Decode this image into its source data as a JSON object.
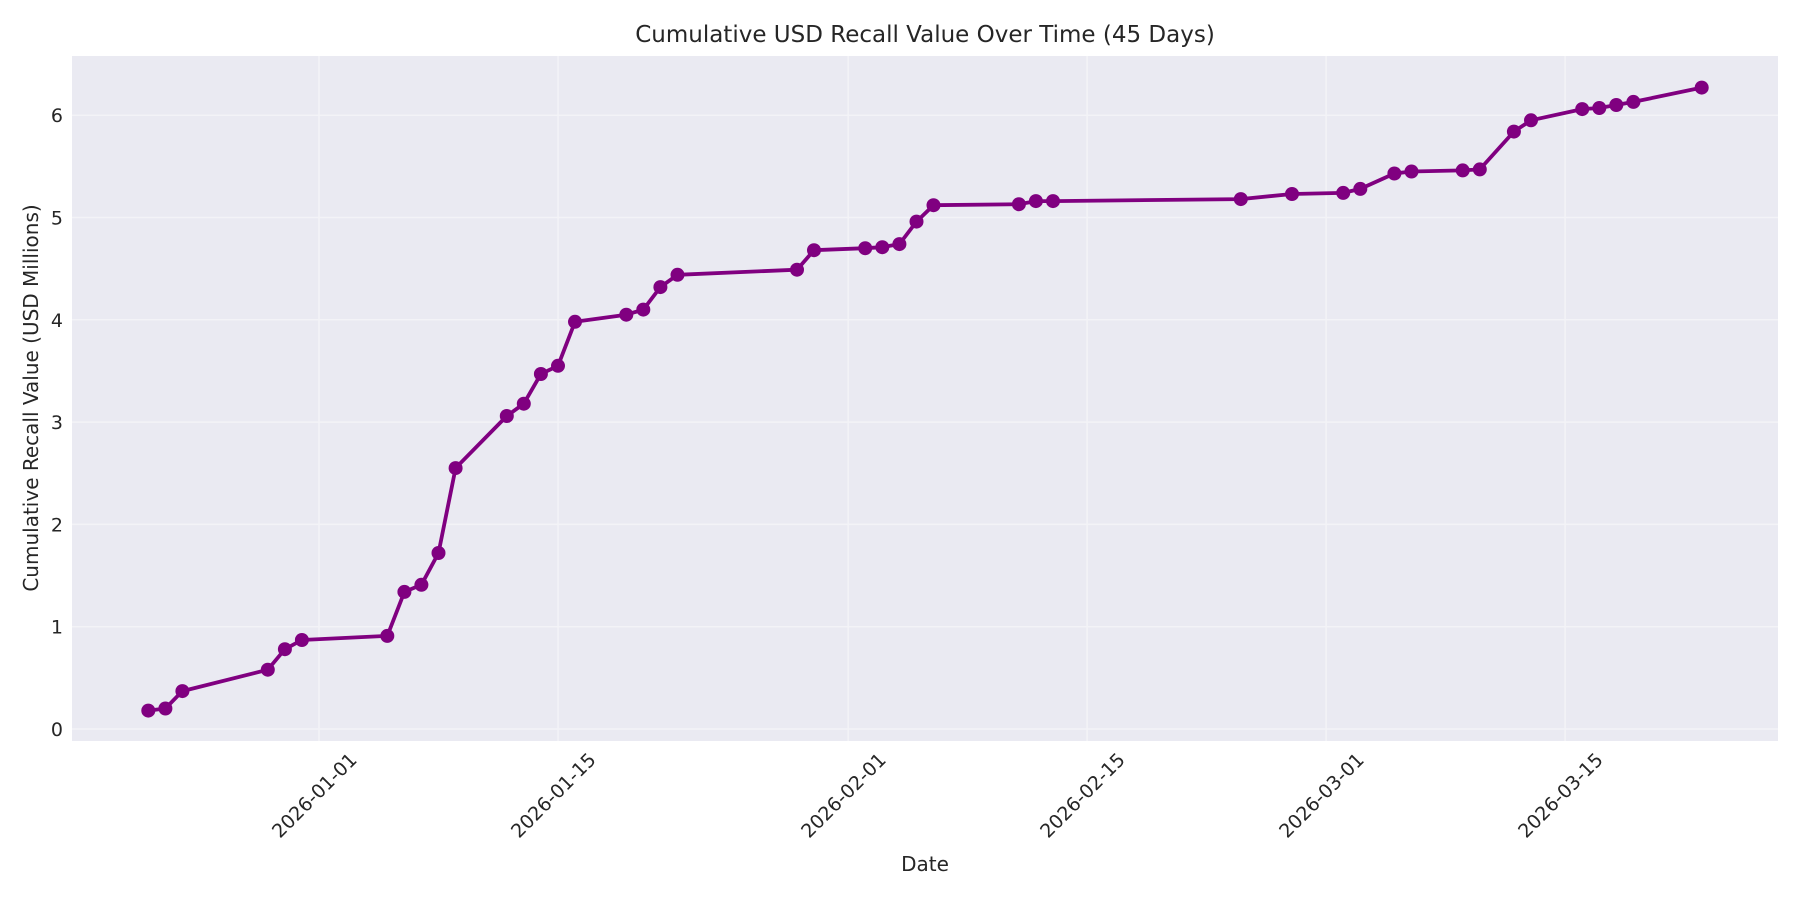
{
  "chart_data": {
    "type": "line",
    "title": "Cumulative USD Recall Value Over Time (45 Days)",
    "xlabel": "Date",
    "ylabel": "Cumulative Recall Value (USD Millions)",
    "x_ticks": [
      "2026-01-01",
      "2026-01-15",
      "2026-02-01",
      "2026-02-15",
      "2026-03-01",
      "2026-03-15"
    ],
    "y_ticks": [
      0,
      1,
      2,
      3,
      4,
      5,
      6
    ],
    "ylim": [
      -0.12,
      6.62
    ],
    "xlim": [
      "2025-12-18",
      "2026-03-28"
    ],
    "grid": true,
    "legend": null,
    "colors": {
      "line": "#800080",
      "marker": "#800080",
      "plot_background": "#EAEAF2",
      "grid": "#F3F3F7"
    },
    "series": [
      {
        "name": "Cumulative Recall Value",
        "marker": "circle",
        "points": [
          {
            "x": "2025-12-22",
            "y": 0.18
          },
          {
            "x": "2025-12-23",
            "y": 0.2
          },
          {
            "x": "2025-12-24",
            "y": 0.37
          },
          {
            "x": "2025-12-29",
            "y": 0.58
          },
          {
            "x": "2025-12-30",
            "y": 0.78
          },
          {
            "x": "2025-12-31",
            "y": 0.87
          },
          {
            "x": "2026-01-05",
            "y": 0.91
          },
          {
            "x": "2026-01-06",
            "y": 1.34
          },
          {
            "x": "2026-01-07",
            "y": 1.41
          },
          {
            "x": "2026-01-08",
            "y": 1.72
          },
          {
            "x": "2026-01-09",
            "y": 2.55
          },
          {
            "x": "2026-01-12",
            "y": 3.06
          },
          {
            "x": "2026-01-13",
            "y": 3.18
          },
          {
            "x": "2026-01-14",
            "y": 3.47
          },
          {
            "x": "2026-01-15",
            "y": 3.55
          },
          {
            "x": "2026-01-16",
            "y": 3.98
          },
          {
            "x": "2026-01-19",
            "y": 4.05
          },
          {
            "x": "2026-01-20",
            "y": 4.1
          },
          {
            "x": "2026-01-21",
            "y": 4.32
          },
          {
            "x": "2026-01-22",
            "y": 4.44
          },
          {
            "x": "2026-01-29",
            "y": 4.49
          },
          {
            "x": "2026-01-30",
            "y": 4.68
          },
          {
            "x": "2026-02-02",
            "y": 4.7
          },
          {
            "x": "2026-02-03",
            "y": 4.71
          },
          {
            "x": "2026-02-04",
            "y": 4.74
          },
          {
            "x": "2026-02-05",
            "y": 4.96
          },
          {
            "x": "2026-02-06",
            "y": 5.12
          },
          {
            "x": "2026-02-11",
            "y": 5.13
          },
          {
            "x": "2026-02-12",
            "y": 5.16
          },
          {
            "x": "2026-02-13",
            "y": 5.16
          },
          {
            "x": "2026-02-24",
            "y": 5.18
          },
          {
            "x": "2026-02-27",
            "y": 5.23
          },
          {
            "x": "2026-03-02",
            "y": 5.24
          },
          {
            "x": "2026-03-03",
            "y": 5.28
          },
          {
            "x": "2026-03-05",
            "y": 5.43
          },
          {
            "x": "2026-03-06",
            "y": 5.45
          },
          {
            "x": "2026-03-09",
            "y": 5.46
          },
          {
            "x": "2026-03-10",
            "y": 5.47
          },
          {
            "x": "2026-03-12",
            "y": 5.84
          },
          {
            "x": "2026-03-13",
            "y": 5.95
          },
          {
            "x": "2026-03-16",
            "y": 6.06
          },
          {
            "x": "2026-03-17",
            "y": 6.07
          },
          {
            "x": "2026-03-18",
            "y": 6.1
          },
          {
            "x": "2026-03-19",
            "y": 6.13
          },
          {
            "x": "2026-03-23",
            "y": 6.27
          }
        ]
      }
    ]
  }
}
